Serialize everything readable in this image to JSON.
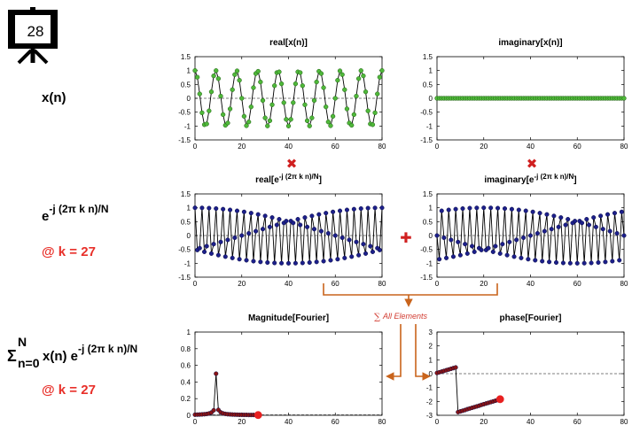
{
  "slide_number": "28",
  "left_labels": {
    "xn": "x(n)",
    "kernel_base": "e",
    "kernel_exp": "-j (2π k n)/N",
    "k_label_1": "@ k = 27",
    "sum_sigma": "Σ",
    "sum_top": "N",
    "sum_bottom": "n=0",
    "sum_body": "x(n) e",
    "sum_exp": "-j (2π k n)/N",
    "k_label_2": "@ k = 27"
  },
  "operators": {
    "times": "✖",
    "plus": "✚",
    "sum_all_sigma": "∑",
    "sum_all_text": "All Elements"
  },
  "colors": {
    "green": "#4fb83a",
    "navy": "#1c1f8a",
    "dark_red": "#8b1414",
    "bright_red": "#e82020",
    "orange": "#c9641c",
    "red_label": "#e8302a"
  },
  "chart_data": [
    {
      "id": "real-xn",
      "type": "line",
      "title": "real[x(n)]",
      "xlim": [
        0,
        80
      ],
      "ylim": [
        -1.5,
        1.5
      ],
      "xticks": [
        0,
        20,
        40,
        60,
        80
      ],
      "yticks": [
        -1.5,
        -1,
        -0.5,
        0,
        0.5,
        1,
        1.5
      ],
      "ytick_labels": [
        "-1.5",
        "-1",
        "-0.5",
        "0",
        "0.5",
        "1",
        "1.5"
      ],
      "n": 81,
      "function": "cos(2π·9n/80)",
      "frequency": 9,
      "amplitude": 1,
      "marker_color": "#4fb83a"
    },
    {
      "id": "imag-xn",
      "type": "line",
      "title": "imaginary[x(n)]",
      "xlim": [
        0,
        80
      ],
      "ylim": [
        -1.5,
        1.5
      ],
      "xticks": [
        0,
        20,
        40,
        60,
        80
      ],
      "yticks": [
        -1.5,
        -1,
        -0.5,
        0,
        0.5,
        1,
        1.5
      ],
      "ytick_labels": [
        "-1.5",
        "-1",
        "-0.5",
        "0",
        "0.5",
        "1",
        "1.5"
      ],
      "n": 81,
      "function": "0",
      "frequency": 0,
      "amplitude": 0,
      "marker_color": "#4fb83a"
    },
    {
      "id": "real-kernel",
      "type": "line",
      "title_main": "real[e",
      "title_sup": "-j (2π k n)/N",
      "title_end": "]",
      "xlim": [
        0,
        80
      ],
      "ylim": [
        -1.5,
        1.5
      ],
      "xticks": [
        0,
        20,
        40,
        60,
        80
      ],
      "yticks": [
        -1.5,
        -1,
        -0.5,
        0,
        0.5,
        1,
        1.5
      ],
      "ytick_labels": [
        "-1.5",
        "-1",
        "-0.5",
        "0",
        "0.5",
        "1",
        "1.5"
      ],
      "n": 81,
      "function": "cos(2π·27n/80)",
      "k": 27,
      "N": 80,
      "marker_color": "#1c1f8a"
    },
    {
      "id": "imag-kernel",
      "type": "line",
      "title_main": "imaginary[e",
      "title_sup": "-j (2π k n)/N",
      "title_end": "]",
      "xlim": [
        0,
        80
      ],
      "ylim": [
        -1.5,
        1.5
      ],
      "xticks": [
        0,
        20,
        40,
        60,
        80
      ],
      "yticks": [
        -1.5,
        -1,
        -0.5,
        0,
        0.5,
        1,
        1.5
      ],
      "ytick_labels": [
        "-1.5",
        "-1",
        "-0.5",
        "0",
        "0.5",
        "1",
        "1.5"
      ],
      "n": 81,
      "function": "-sin(2π·27n/80)",
      "k": 27,
      "N": 80,
      "marker_color": "#1c1f8a"
    },
    {
      "id": "magnitude",
      "type": "line",
      "title": "Magnitude[Fourier]",
      "xlim": [
        0,
        80
      ],
      "ylim": [
        0,
        1
      ],
      "xticks": [
        0,
        20,
        40,
        60,
        80
      ],
      "yticks": [
        0,
        0.2,
        0.4,
        0.6,
        0.8,
        1
      ],
      "ytick_labels": [
        "0",
        "0.2",
        "0.4",
        "0.6",
        "0.8",
        "1"
      ],
      "x": [
        0,
        1,
        2,
        3,
        4,
        5,
        6,
        7,
        8,
        9,
        10,
        11,
        12,
        13,
        14,
        15,
        16,
        17,
        18,
        19,
        20,
        21,
        22,
        23,
        24,
        25,
        26,
        27
      ],
      "y": [
        0.007,
        0.008,
        0.009,
        0.011,
        0.013,
        0.016,
        0.022,
        0.033,
        0.06,
        0.5,
        0.065,
        0.035,
        0.023,
        0.017,
        0.013,
        0.011,
        0.009,
        0.008,
        0.007,
        0.006,
        0.006,
        0.005,
        0.005,
        0.004,
        0.004,
        0.004,
        0.003,
        0.003
      ],
      "highlight_index": 27,
      "marker_color": "#8b1414",
      "highlight_color": "#e82020"
    },
    {
      "id": "phase",
      "type": "line",
      "title": "phase[Fourier]",
      "xlim": [
        0,
        80
      ],
      "ylim": [
        -3,
        3
      ],
      "xticks": [
        0,
        20,
        40,
        60,
        80
      ],
      "yticks": [
        -3,
        -2,
        -1,
        0,
        1,
        2,
        3
      ],
      "ytick_labels": [
        "-3",
        "-2",
        "-1",
        "0",
        "1",
        "2",
        "3"
      ],
      "x": [
        0,
        1,
        2,
        3,
        4,
        5,
        6,
        7,
        8,
        9,
        10,
        11,
        12,
        13,
        14,
        15,
        16,
        17,
        18,
        19,
        20,
        21,
        22,
        23,
        24,
        25,
        26,
        27
      ],
      "y": [
        0.05,
        0.1,
        0.15,
        0.2,
        0.25,
        0.3,
        0.35,
        0.4,
        0.45,
        -2.77,
        -2.72,
        -2.67,
        -2.62,
        -2.56,
        -2.51,
        -2.46,
        -2.41,
        -2.36,
        -2.31,
        -2.25,
        -2.2,
        -2.15,
        -2.1,
        -2.05,
        -2.0,
        -1.95,
        -1.9,
        -1.84
      ],
      "highlight_index": 27,
      "marker_color": "#8b1414",
      "highlight_color": "#e82020"
    }
  ]
}
